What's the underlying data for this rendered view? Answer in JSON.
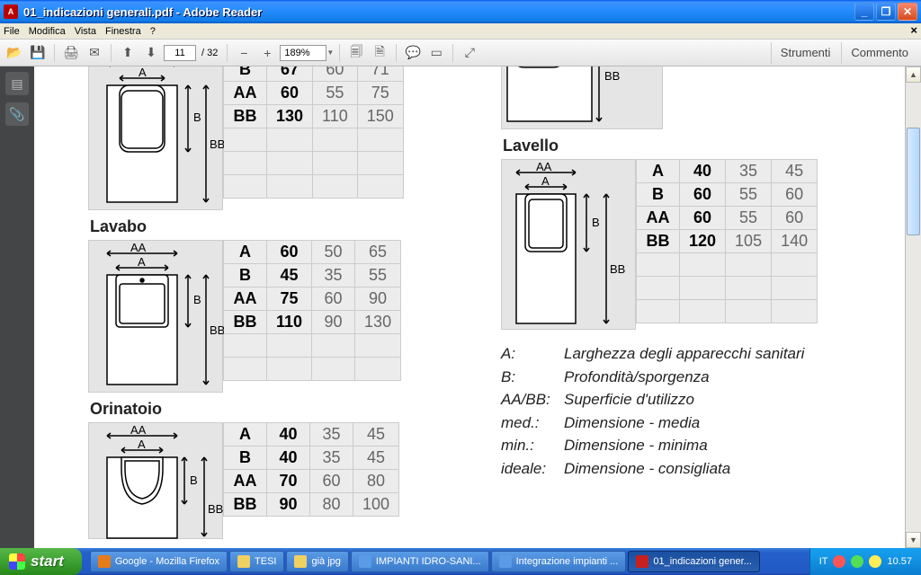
{
  "window": {
    "title": "01_indicazioni generali.pdf - Adobe Reader"
  },
  "menu": {
    "items": [
      "File",
      "Modifica",
      "Vista",
      "Finestra",
      "?"
    ]
  },
  "toolbar": {
    "page_current": "11",
    "page_total": "32",
    "zoom": "189%",
    "strumenti": "Strumenti",
    "commento": "Commento"
  },
  "sections": {
    "top": {
      "rows": [
        {
          "lab": "B",
          "v": [
            "67",
            "60",
            "71"
          ]
        },
        {
          "lab": "AA",
          "v": [
            "60",
            "55",
            "75"
          ]
        },
        {
          "lab": "BB",
          "v": [
            "130",
            "110",
            "150"
          ]
        }
      ]
    },
    "lavabo": {
      "title": "Lavabo",
      "rows": [
        {
          "lab": "A",
          "v": [
            "60",
            "50",
            "65"
          ]
        },
        {
          "lab": "B",
          "v": [
            "45",
            "35",
            "55"
          ]
        },
        {
          "lab": "AA",
          "v": [
            "75",
            "60",
            "90"
          ]
        },
        {
          "lab": "BB",
          "v": [
            "110",
            "90",
            "130"
          ]
        }
      ]
    },
    "orinatoio": {
      "title": "Orinatoio",
      "rows": [
        {
          "lab": "A",
          "v": [
            "40",
            "35",
            "45"
          ]
        },
        {
          "lab": "B",
          "v": [
            "40",
            "35",
            "45"
          ]
        },
        {
          "lab": "AA",
          "v": [
            "70",
            "60",
            "80"
          ]
        },
        {
          "lab": "BB",
          "v": [
            "90",
            "80",
            "100"
          ]
        }
      ]
    },
    "topright": {
      "label": "BB"
    },
    "lavello": {
      "title": "Lavello",
      "rows": [
        {
          "lab": "A",
          "v": [
            "40",
            "35",
            "45"
          ]
        },
        {
          "lab": "B",
          "v": [
            "60",
            "55",
            "60"
          ]
        },
        {
          "lab": "AA",
          "v": [
            "60",
            "55",
            "60"
          ]
        },
        {
          "lab": "BB",
          "v": [
            "120",
            "105",
            "140"
          ]
        }
      ]
    }
  },
  "legend": [
    {
      "k": "A:",
      "t": "Larghezza degli apparecchi sanitari"
    },
    {
      "k": "B:",
      "t": "Profondità/sporgenza"
    },
    {
      "k": "AA/BB:",
      "t": "Superficie d'utilizzo"
    },
    {
      "k": "med.:",
      "t": "Dimensione - media"
    },
    {
      "k": "min.:",
      "t": "Dimensione - minima"
    },
    {
      "k": "ideale:",
      "t": "Dimensione - consigliata"
    }
  ],
  "taskbar": {
    "start": "start",
    "items": [
      {
        "label": "Google - Mozilla Firefox",
        "color": "#e67b1a"
      },
      {
        "label": "TESI",
        "color": "#f0d060"
      },
      {
        "label": "già jpg",
        "color": "#f0d060"
      },
      {
        "label": "IMPIANTI IDRO-SANI...",
        "color": "#5a9be6"
      },
      {
        "label": "Integrazione impianti ...",
        "color": "#5a9be6"
      },
      {
        "label": "01_indicazioni gener...",
        "color": "#c62020",
        "active": true
      }
    ],
    "tray_lang": "IT",
    "tray_time": "10.57"
  }
}
